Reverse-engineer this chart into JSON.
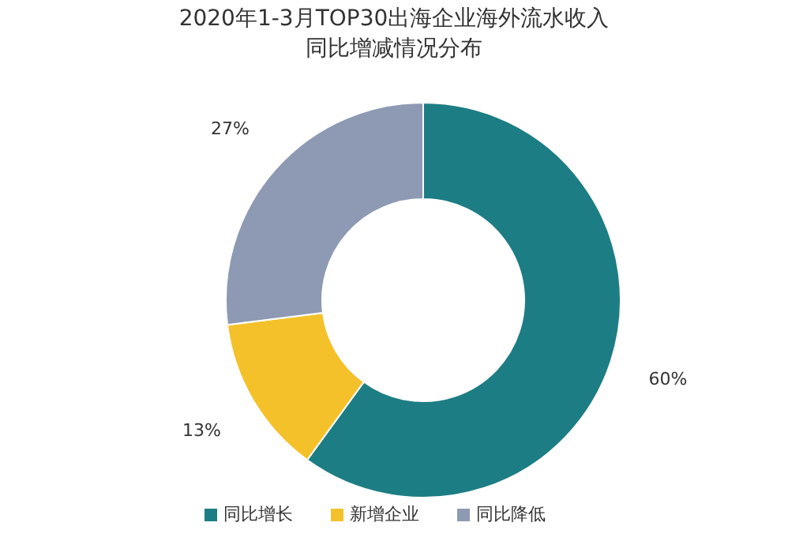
{
  "chart_data": {
    "type": "donut",
    "title": "2020年1-3月TOP30出海企业海外流水收入同比增减情况分布",
    "categories": [
      "同比增长",
      "新增企业",
      "同比降低"
    ],
    "values": [
      60,
      13,
      27
    ],
    "value_labels": [
      "60%",
      "13%",
      "27%"
    ],
    "colors": [
      "#1d7d84",
      "#f4c12a",
      "#8e9ab3"
    ],
    "legend": "bottom"
  }
}
